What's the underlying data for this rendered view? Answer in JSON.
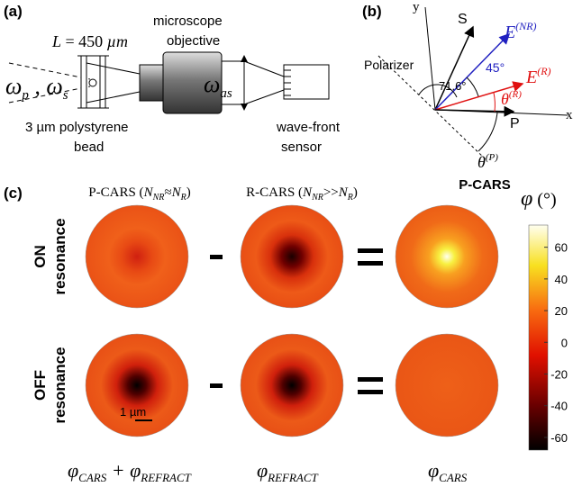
{
  "panel_a": {
    "label": "(a)",
    "length": {
      "symbol": "L",
      "eq": " = 450 ",
      "unit": "µm"
    },
    "objective": [
      "microscope",
      "objective"
    ],
    "input": {
      "w1": "ω",
      "s1": "p",
      "sep": " , ",
      "w2": "ω",
      "s2": "s"
    },
    "output": {
      "w": "ω",
      "s": "as"
    },
    "bead": [
      "3 µm polystyrene",
      "bead"
    ],
    "sensor": [
      "wave-front",
      "sensor"
    ]
  },
  "panel_b": {
    "label": "(b)",
    "y_axis": "y",
    "x_axis": "x",
    "s": "S",
    "e_nr": {
      "base": "E",
      "sup": "(NR)"
    },
    "e_r": {
      "base": "E",
      "sup": "(R)"
    },
    "polarizer": "Polarizer",
    "angle_45": "45°",
    "angle_716": "71.6°",
    "theta_r": {
      "base": "θ",
      "sup": "(R)"
    },
    "theta_p": {
      "base": "θ",
      "sup": "(P)"
    },
    "p": "P",
    "caption": "P-CARS"
  },
  "panel_c": {
    "label": "(c)",
    "col1": {
      "name": "P-CARS (",
      "n1": "N",
      "s1": "NR",
      "rel": "≈",
      "n2": "N",
      "s2": "R",
      "end": ")"
    },
    "col2": {
      "name": "R-CARS (",
      "n1": "N",
      "s1": "NR",
      "rel": ">>",
      "n2": "N",
      "s2": "R",
      "end": ")"
    },
    "rows": [
      [
        "ON",
        "resonance"
      ],
      [
        "OFF",
        "resonance"
      ]
    ],
    "scale_bar": "1 µm",
    "bottom": [
      {
        "a": "φ",
        "as": "CARS",
        "op": " + ",
        "b": "φ",
        "bs": "REFRACT"
      },
      {
        "a": "φ",
        "as": "REFRACT"
      },
      {
        "a": "φ",
        "as": "CARS"
      }
    ],
    "colorbar": {
      "symbol": "φ",
      "unit": " (°)",
      "lim": [
        -68,
        74
      ],
      "ticks": [
        60,
        40,
        20,
        0,
        -20,
        -40,
        -60
      ]
    }
  }
}
